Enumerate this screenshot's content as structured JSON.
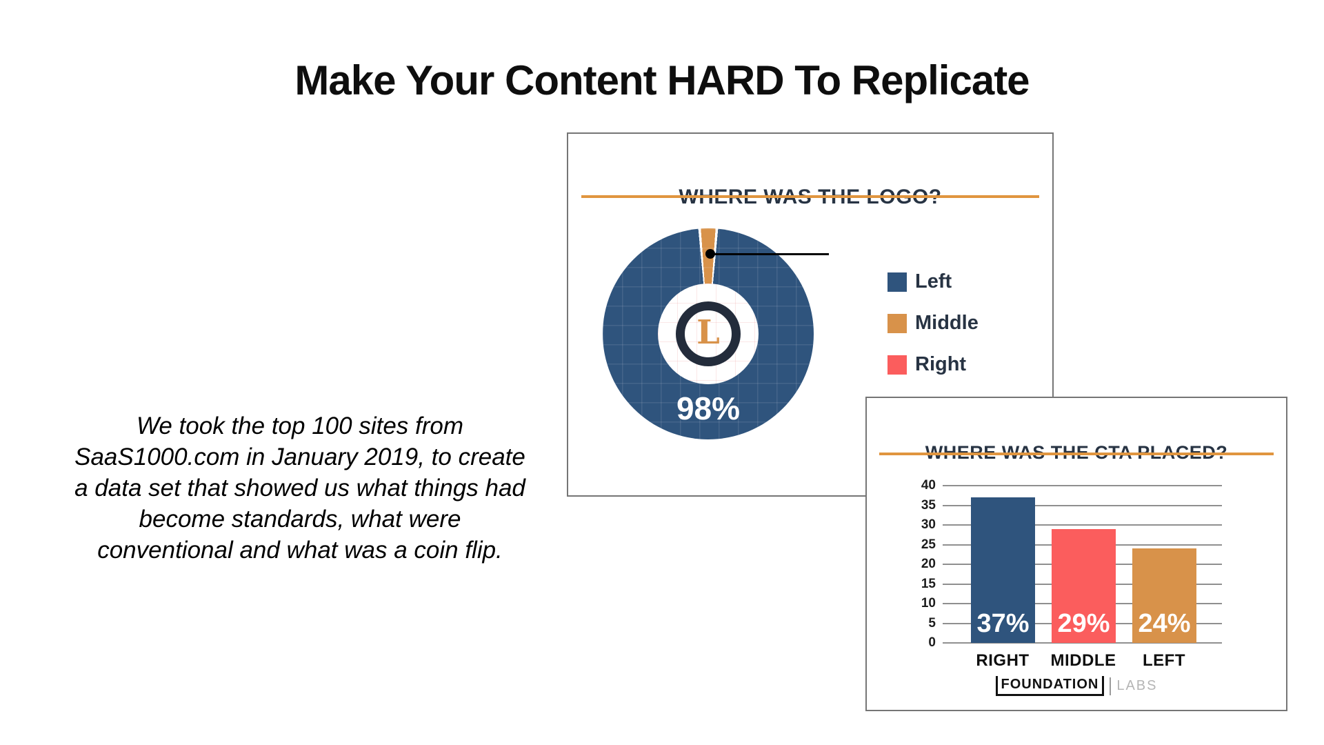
{
  "slide": {
    "title": "Make Your Content HARD To Replicate",
    "intro_text": "We took the top 100 sites from\nSaaS1000.com in January 2019, to create\na data set that showed us what things had\nbecome standards, what were\nconventional and what was a coin flip."
  },
  "chart_data": [
    {
      "type": "pie",
      "title": "WHERE WAS THE LOGO?",
      "labels": [
        "Left",
        "Middle",
        "Right"
      ],
      "values": [
        98,
        2,
        0
      ],
      "colors": [
        "#2F547D",
        "#D8924A",
        "#FB5D5D"
      ],
      "value_label": "98%",
      "center_letter": "L",
      "legend_position": "right",
      "annotation_line_to": "Middle",
      "accent_underline_color": "#E0953F"
    },
    {
      "type": "bar",
      "title": "WHERE WAS THE CTA PLACED?",
      "categories": [
        "RIGHT",
        "MIDDLE",
        "LEFT"
      ],
      "values": [
        37,
        29,
        24
      ],
      "value_labels": [
        "37%",
        "29%",
        "24%"
      ],
      "colors": [
        "#2F547D",
        "#FB5D5D",
        "#D8924A"
      ],
      "yticks": [
        0,
        5,
        10,
        15,
        20,
        25,
        30,
        35,
        40
      ],
      "ylim": [
        0,
        40
      ],
      "grid": true,
      "xlabel": "",
      "ylabel": ""
    }
  ],
  "footer": {
    "brand": "FOUNDATION",
    "labs": "LABS"
  }
}
